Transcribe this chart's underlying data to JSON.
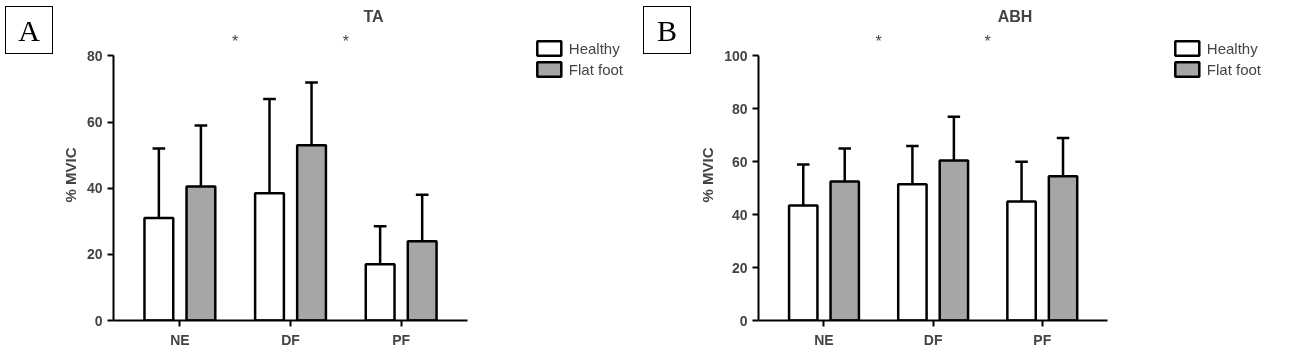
{
  "chart_data": [
    {
      "type": "bar",
      "title": "TA",
      "ylabel": "% MVIC",
      "categories": [
        "NE",
        "DF",
        "PF"
      ],
      "series": [
        {
          "name": "Healthy",
          "color": "#ffffff",
          "values": [
            31,
            38.5,
            17
          ],
          "errors": [
            [
              31,
              52
            ],
            [
              38.5,
              67
            ],
            [
              17,
              28.5
            ]
          ]
        },
        {
          "name": "Flat foot",
          "color": "#a6a6a6",
          "values": [
            40.5,
            53,
            24
          ],
          "errors": [
            [
              40.5,
              59
            ],
            [
              53,
              72
            ],
            [
              24,
              38
            ]
          ]
        }
      ],
      "ylim": [
        0,
        80
      ],
      "yticks": [
        0,
        20,
        40,
        60,
        80
      ],
      "grid": false,
      "legend": "right",
      "annotations": [
        "A",
        "*",
        "*"
      ]
    },
    {
      "type": "bar",
      "title": "ABH",
      "ylabel": "% MVIC",
      "categories": [
        "NE",
        "DF",
        "PF"
      ],
      "series": [
        {
          "name": "Healthy",
          "color": "#ffffff",
          "values": [
            43.5,
            51.5,
            45
          ],
          "errors": [
            [
              43.5,
              59
            ],
            [
              51.5,
              66
            ],
            [
              45,
              60
            ]
          ]
        },
        {
          "name": "Flat foot",
          "color": "#a6a6a6",
          "values": [
            52.5,
            60.5,
            54.5
          ],
          "errors": [
            [
              52.5,
              65
            ],
            [
              60.5,
              77
            ],
            [
              54.5,
              69
            ]
          ]
        }
      ],
      "ylim": [
        0,
        100
      ],
      "yticks": [
        0,
        20,
        40,
        60,
        80,
        100
      ],
      "grid": false,
      "legend": "right",
      "annotations": [
        "B",
        "*",
        "*"
      ]
    }
  ]
}
